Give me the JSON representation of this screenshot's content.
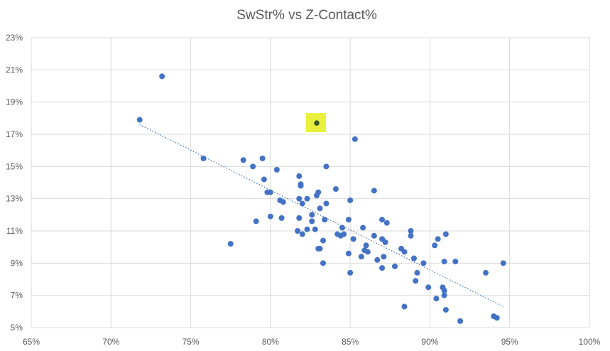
{
  "chart_data": {
    "type": "scatter",
    "title": "SwStr% vs Z-Contact%",
    "xlabel": "",
    "ylabel": "",
    "xlim": [
      65,
      100
    ],
    "ylim": [
      5,
      23
    ],
    "xticks": [
      "65%",
      "70%",
      "75%",
      "80%",
      "85%",
      "90%",
      "95%",
      "100%"
    ],
    "yticks": [
      "5%",
      "7%",
      "9%",
      "11%",
      "13%",
      "15%",
      "17%",
      "19%",
      "21%",
      "23%"
    ],
    "grid": true,
    "colors": {
      "point": "#4472c4",
      "highlight_point": "#375623",
      "highlight_box": "#e8f03c",
      "trendline": "#4472c4",
      "grid": "#d9d9d9",
      "text": "#595959"
    },
    "trendline": {
      "type": "linear",
      "dotted": true,
      "x": [
        71.8,
        94.6
      ],
      "y": [
        17.6,
        6.3
      ]
    },
    "highlight": {
      "x": 82.9,
      "y": 17.7
    },
    "points": [
      [
        71.8,
        17.9
      ],
      [
        73.2,
        20.6
      ],
      [
        75.8,
        15.5
      ],
      [
        77.5,
        10.2
      ],
      [
        78.3,
        15.4
      ],
      [
        78.9,
        15.0
      ],
      [
        79.1,
        11.6
      ],
      [
        79.5,
        15.5
      ],
      [
        79.6,
        14.2
      ],
      [
        79.8,
        13.4
      ],
      [
        80.0,
        13.4
      ],
      [
        80.0,
        11.9
      ],
      [
        80.4,
        14.8
      ],
      [
        80.6,
        12.9
      ],
      [
        80.7,
        11.8
      ],
      [
        80.8,
        12.8
      ],
      [
        81.8,
        14.4
      ],
      [
        81.9,
        13.9
      ],
      [
        81.9,
        13.8
      ],
      [
        81.8,
        13.0
      ],
      [
        82.0,
        12.7
      ],
      [
        81.8,
        11.8
      ],
      [
        81.7,
        11.0
      ],
      [
        82.0,
        10.8
      ],
      [
        82.3,
        13.0
      ],
      [
        82.3,
        11.1
      ],
      [
        82.6,
        12.0
      ],
      [
        82.6,
        11.6
      ],
      [
        82.8,
        11.1
      ],
      [
        82.9,
        13.2
      ],
      [
        83.0,
        13.4
      ],
      [
        83.1,
        12.4
      ],
      [
        83.0,
        9.9
      ],
      [
        83.1,
        9.9
      ],
      [
        83.3,
        10.4
      ],
      [
        83.3,
        9.0
      ],
      [
        83.4,
        11.7
      ],
      [
        83.5,
        15.0
      ],
      [
        83.5,
        12.7
      ],
      [
        84.1,
        13.6
      ],
      [
        84.2,
        10.8
      ],
      [
        84.4,
        10.7
      ],
      [
        84.5,
        11.2
      ],
      [
        84.6,
        10.8
      ],
      [
        84.9,
        11.7
      ],
      [
        84.9,
        9.6
      ],
      [
        85.0,
        12.9
      ],
      [
        85.0,
        8.4
      ],
      [
        85.3,
        16.7
      ],
      [
        85.2,
        10.5
      ],
      [
        85.7,
        9.4
      ],
      [
        85.8,
        11.2
      ],
      [
        85.9,
        9.8
      ],
      [
        86.0,
        10.1
      ],
      [
        86.1,
        9.7
      ],
      [
        86.5,
        13.5
      ],
      [
        86.5,
        10.7
      ],
      [
        86.7,
        9.2
      ],
      [
        87.0,
        11.7
      ],
      [
        87.0,
        10.5
      ],
      [
        87.0,
        8.7
      ],
      [
        87.2,
        10.3
      ],
      [
        87.1,
        9.4
      ],
      [
        87.3,
        11.5
      ],
      [
        87.8,
        8.8
      ],
      [
        88.2,
        9.9
      ],
      [
        88.4,
        9.7
      ],
      [
        88.4,
        6.3
      ],
      [
        88.8,
        11.0
      ],
      [
        88.8,
        10.7
      ],
      [
        89.0,
        9.3
      ],
      [
        89.2,
        8.4
      ],
      [
        89.1,
        7.9
      ],
      [
        89.6,
        9.0
      ],
      [
        89.9,
        7.5
      ],
      [
        90.3,
        10.1
      ],
      [
        90.5,
        10.5
      ],
      [
        90.4,
        6.8
      ],
      [
        90.8,
        7.5
      ],
      [
        90.9,
        7.3
      ],
      [
        90.9,
        7.0
      ],
      [
        90.9,
        9.1
      ],
      [
        91.0,
        10.8
      ],
      [
        91.0,
        6.1
      ],
      [
        91.6,
        9.1
      ],
      [
        91.9,
        5.4
      ],
      [
        93.5,
        8.4
      ],
      [
        94.0,
        5.7
      ],
      [
        94.2,
        5.6
      ],
      [
        94.6,
        9.0
      ]
    ]
  }
}
